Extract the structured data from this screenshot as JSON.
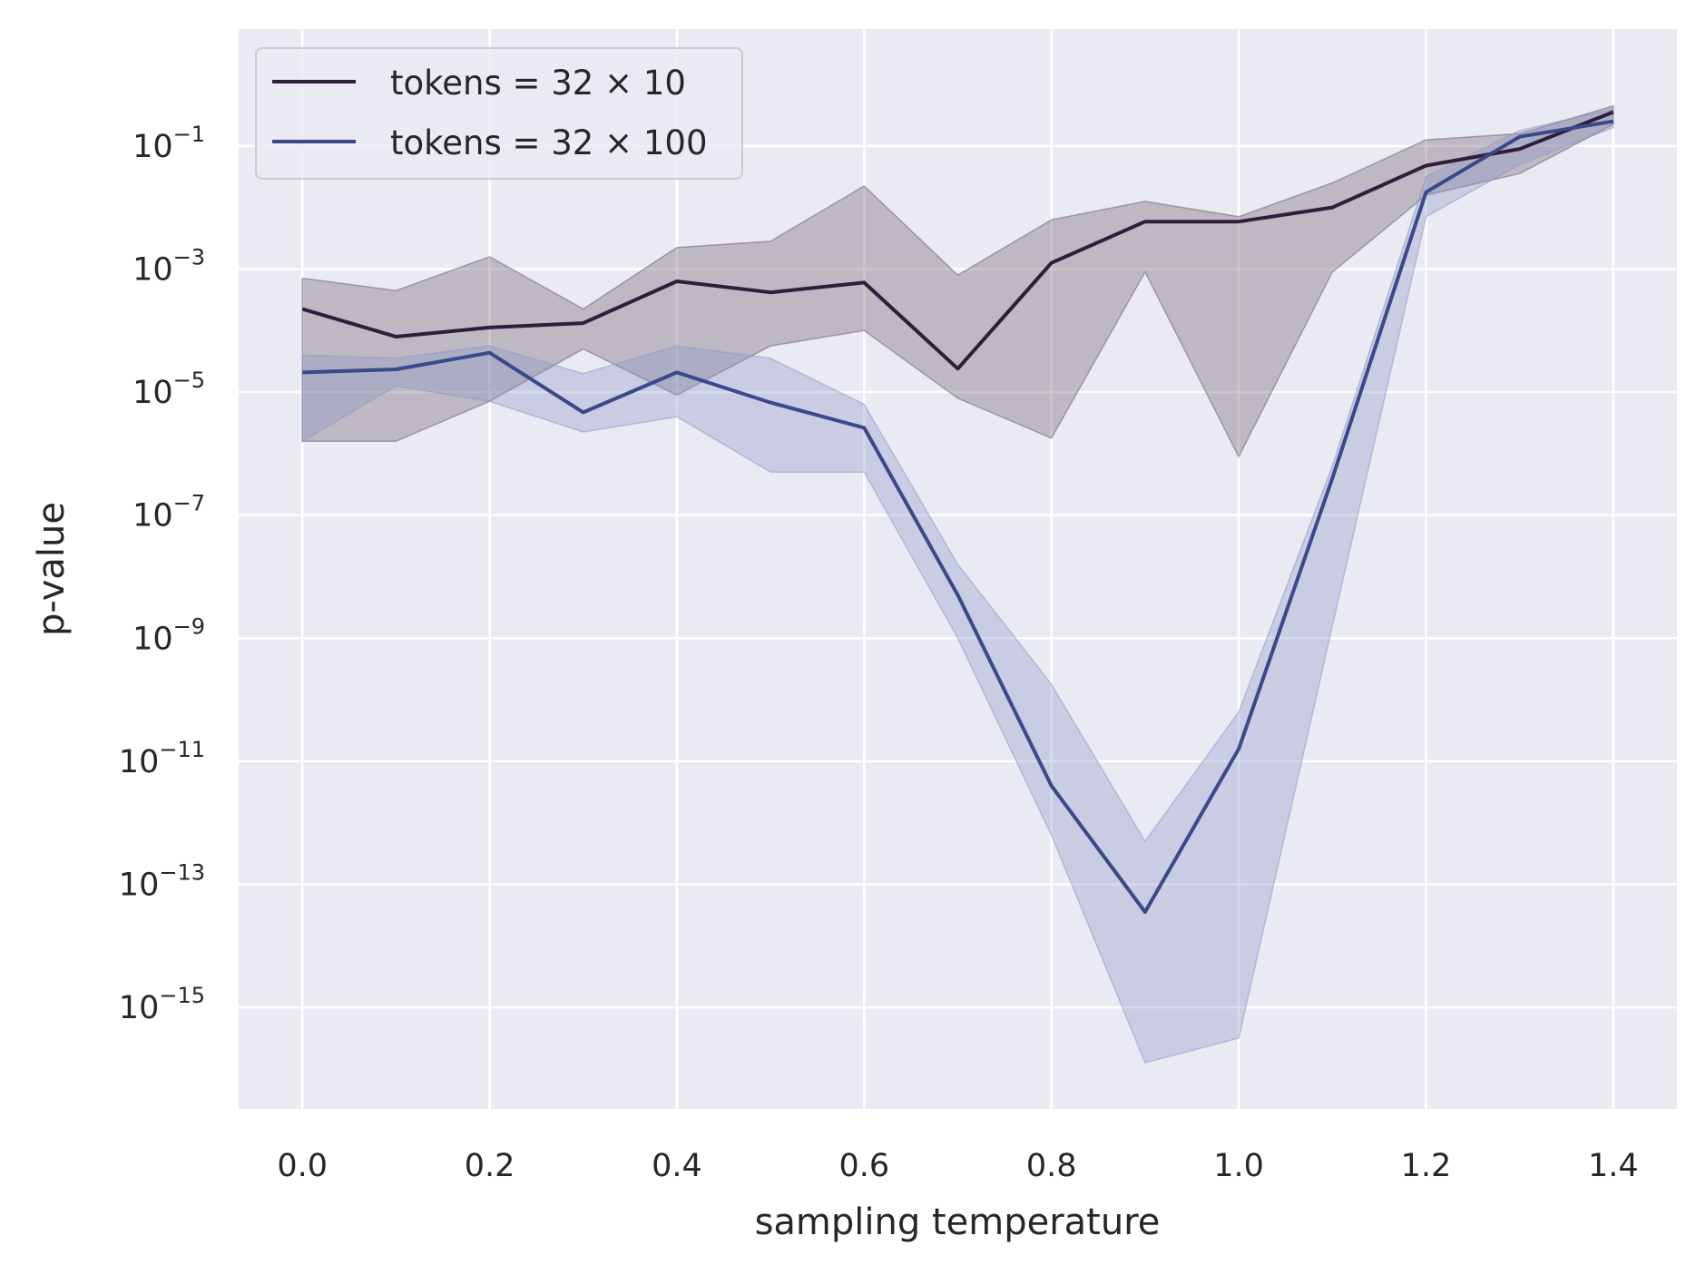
{
  "chart_data": {
    "type": "line",
    "xlabel": "sampling temperature",
    "ylabel": "p-value",
    "xlim": [
      -0.068,
      1.468
    ],
    "ylim_log10": [
      -16.65,
      0.9
    ],
    "yscale": "log",
    "grid": true,
    "legend_position": "top-left",
    "x_ticks": [
      0.0,
      0.2,
      0.4,
      0.6,
      0.8,
      1.0,
      1.2,
      1.4
    ],
    "x_tick_labels": [
      "0.0",
      "0.2",
      "0.4",
      "0.6",
      "0.8",
      "1.0",
      "1.2",
      "1.4"
    ],
    "y_tick_exponents": [
      -1,
      -3,
      -5,
      -7,
      -9,
      -11,
      -13,
      -15
    ],
    "y_tick_labels": [
      "10",
      "10",
      "10",
      "10",
      "10",
      "10",
      "10",
      "10"
    ],
    "y_tick_sups": [
      "−1",
      "−3",
      "−5",
      "−7",
      "−9",
      "−11",
      "−13",
      "−15"
    ],
    "x": [
      0.0,
      0.1,
      0.2,
      0.3,
      0.4,
      0.5,
      0.6,
      0.7,
      0.8,
      0.9,
      1.0,
      1.1,
      1.2,
      1.3,
      1.4
    ],
    "series": [
      {
        "name": "tokens = 32 × 10",
        "color": "#2e1e3b",
        "band_color": "#6b5c6b",
        "log10_values": [
          -3.65,
          -4.1,
          -3.95,
          -3.88,
          -3.2,
          -3.38,
          -3.22,
          -4.62,
          -2.9,
          -2.23,
          -2.23,
          -2.0,
          -1.32,
          -1.05,
          -0.45
        ],
        "log10_lower": [
          -5.8,
          -5.8,
          -5.15,
          -4.3,
          -5.05,
          -4.25,
          -4.0,
          -5.1,
          -5.75,
          -3.05,
          -6.05,
          -3.05,
          -1.8,
          -1.45,
          -0.65
        ],
        "log10_upper": [
          -3.15,
          -3.35,
          -2.8,
          -3.65,
          -2.65,
          -2.55,
          -1.65,
          -3.1,
          -2.2,
          -1.9,
          -2.15,
          -1.6,
          -0.9,
          -0.8,
          -0.35
        ]
      },
      {
        "name": "tokens = 32 × 100",
        "color": "#3b4889",
        "band_color": "#8c96c8",
        "log10_values": [
          -4.68,
          -4.63,
          -4.36,
          -5.33,
          -4.68,
          -5.17,
          -5.58,
          -8.3,
          -11.4,
          -13.45,
          -10.8,
          -6.4,
          -1.75,
          -0.85,
          -0.6
        ],
        "log10_lower": [
          -5.8,
          -4.9,
          -5.15,
          -5.65,
          -5.4,
          -6.3,
          -6.3,
          -9.0,
          -12.2,
          -15.9,
          -15.5,
          -8.8,
          -2.15,
          -1.3,
          -0.7
        ],
        "log10_upper": [
          -4.4,
          -4.45,
          -4.25,
          -4.7,
          -4.25,
          -4.45,
          -5.2,
          -7.8,
          -9.75,
          -12.3,
          -10.2,
          -6.2,
          -1.5,
          -0.75,
          -0.4
        ]
      }
    ]
  }
}
